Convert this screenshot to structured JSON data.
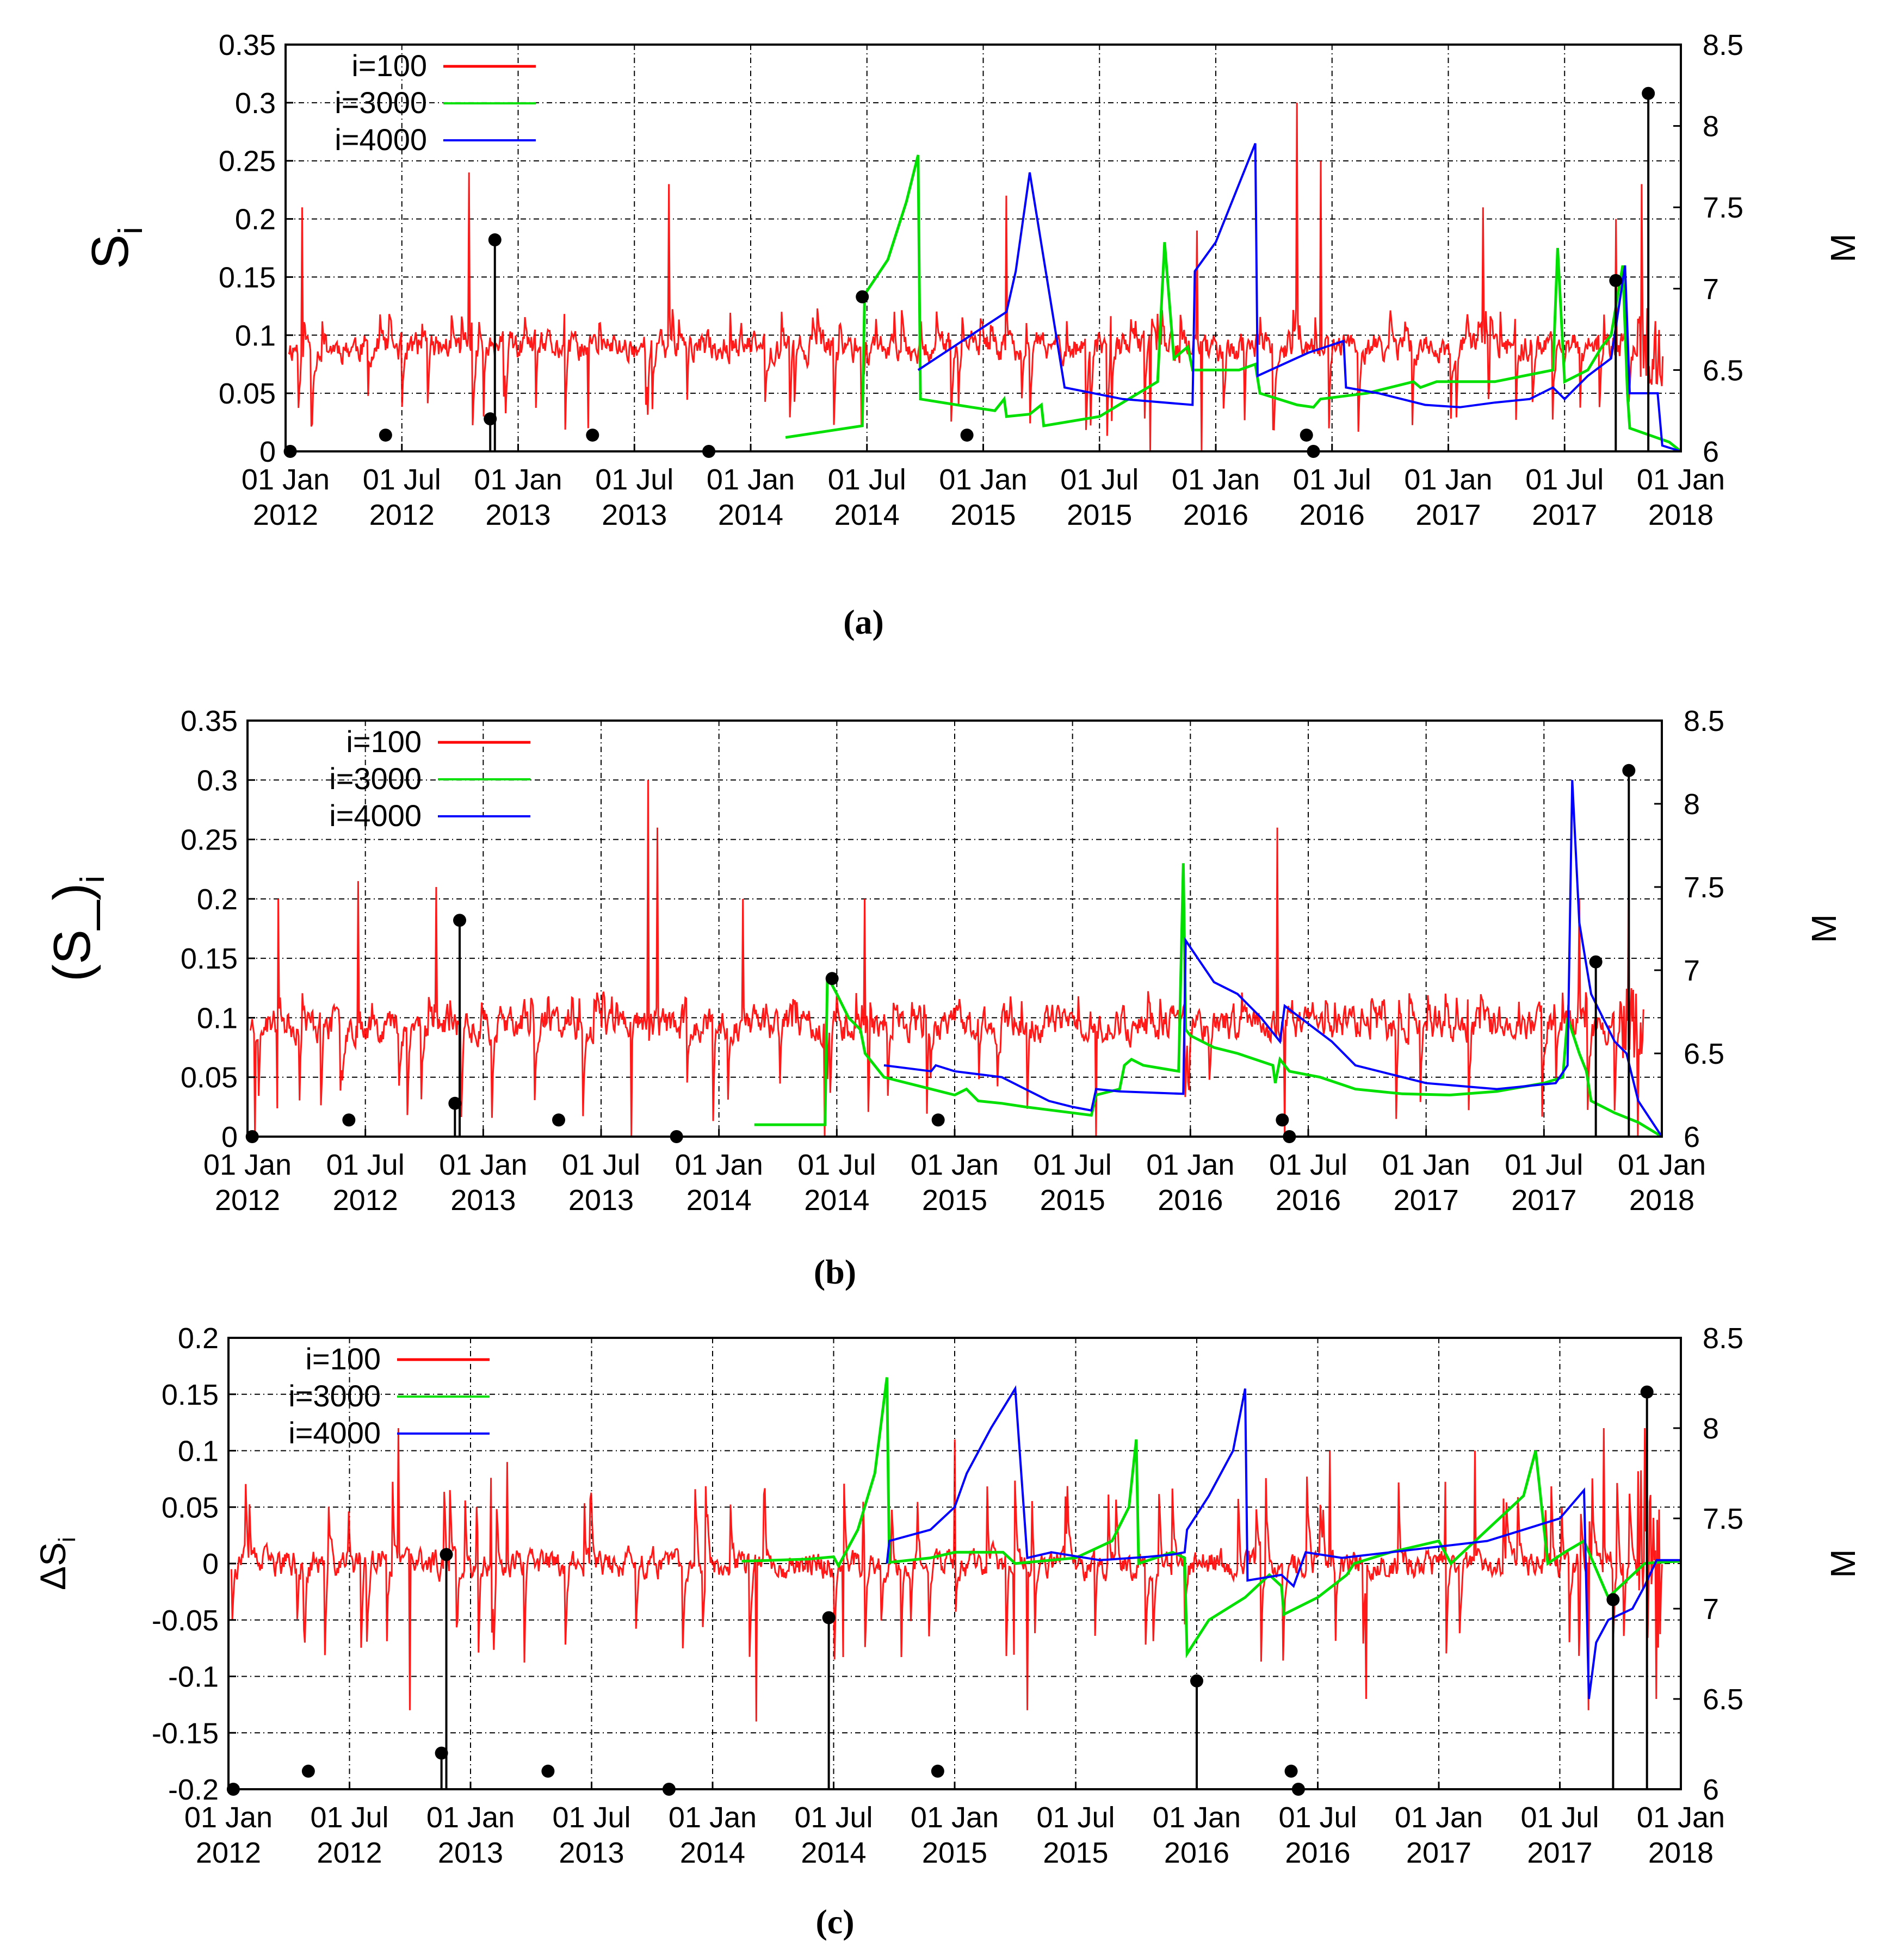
{
  "figure": {
    "x_ticks": [
      {
        "line1": "01 Jan",
        "line2": "2012",
        "t": 0
      },
      {
        "line1": "01 Jul",
        "line2": "2012",
        "t": 0.5
      },
      {
        "line1": "01 Jan",
        "line2": "2013",
        "t": 1
      },
      {
        "line1": "01 Jul",
        "line2": "2013",
        "t": 1.5
      },
      {
        "line1": "01 Jan",
        "line2": "2014",
        "t": 2
      },
      {
        "line1": "01 Jul",
        "line2": "2014",
        "t": 2.5
      },
      {
        "line1": "01 Jan",
        "line2": "2015",
        "t": 3
      },
      {
        "line1": "01 Jul",
        "line2": "2015",
        "t": 3.5
      },
      {
        "line1": "01 Jan",
        "line2": "2016",
        "t": 4
      },
      {
        "line1": "01 Jul",
        "line2": "2016",
        "t": 4.5
      },
      {
        "line1": "01 Jan",
        "line2": "2017",
        "t": 5
      },
      {
        "line1": "01 Jul",
        "line2": "2017",
        "t": 5.5
      },
      {
        "line1": "01 Jan",
        "line2": "2018",
        "t": 6
      }
    ],
    "legend": [
      {
        "label": "i=100",
        "color": "#ff0000"
      },
      {
        "label": "i=3000",
        "color": "#00e000"
      },
      {
        "label": "i=4000",
        "color": "#0000ff"
      }
    ],
    "colors": {
      "red": "#ff0000",
      "green": "#00e000",
      "blue": "#0000ff",
      "events": "#000000",
      "grid": "#000000"
    }
  },
  "chart_data": [
    {
      "type": "line",
      "caption": "(a)",
      "ylabel": "S",
      "ylabel_sub": "i",
      "y2label": "M",
      "ylim": [
        0,
        0.35
      ],
      "y_ticks": [
        "0",
        "0.05",
        "0.1",
        "0.15",
        "0.2",
        "0.25",
        "0.3",
        "0.35"
      ],
      "y2lim": [
        6,
        8.5
      ],
      "y2_ticks": [
        "6",
        "6.5",
        "7",
        "7.5",
        "8",
        "8.5"
      ],
      "xlim_years": [
        0,
        6
      ],
      "noise": {
        "base": 0.09,
        "amp": 0.022,
        "spike_hi": 0.12,
        "spike_lo": 0.02,
        "min": 0,
        "max": 0.35,
        "seed": 11
      },
      "spikes": [
        [
          0.07,
          0.21
        ],
        [
          0.79,
          0.24
        ],
        [
          1.65,
          0.23
        ],
        [
          3.1,
          0.22
        ],
        [
          3.92,
          0.19
        ],
        [
          4.35,
          0.3
        ],
        [
          4.45,
          0.25
        ],
        [
          5.15,
          0.21
        ],
        [
          5.72,
          0.2
        ],
        [
          5.83,
          0.23
        ],
        [
          0.85,
          0.03
        ],
        [
          1.3,
          0.02
        ],
        [
          3.72,
          0.0
        ],
        [
          3.94,
          0.0
        ]
      ],
      "series": [
        {
          "name": "i=3000",
          "color": "#00e000",
          "x": [
            2.15,
            2.48,
            2.49,
            2.59,
            2.67,
            2.72,
            2.73,
            2.95,
            3.05,
            3.09,
            3.1,
            3.2,
            3.25,
            3.26,
            3.5,
            3.75,
            3.78,
            3.82,
            3.88,
            3.9,
            4.1,
            4.17,
            4.19,
            4.35,
            4.42,
            4.45,
            4.65,
            4.85,
            4.88,
            4.95,
            5.2,
            5.45,
            5.47,
            5.5,
            5.6,
            5.66,
            5.7,
            5.75,
            5.77,
            5.78,
            5.85,
            5.95,
            6.0
          ],
          "values": [
            0.012,
            0.022,
            0.135,
            0.165,
            0.215,
            0.255,
            0.045,
            0.038,
            0.035,
            0.045,
            0.03,
            0.032,
            0.04,
            0.022,
            0.03,
            0.06,
            0.18,
            0.08,
            0.09,
            0.07,
            0.07,
            0.075,
            0.05,
            0.04,
            0.038,
            0.045,
            0.05,
            0.06,
            0.055,
            0.06,
            0.06,
            0.07,
            0.175,
            0.06,
            0.07,
            0.09,
            0.1,
            0.16,
            0.05,
            0.02,
            0.015,
            0.008,
            0.0
          ]
        },
        {
          "name": "i=4000",
          "color": "#0000ff",
          "x": [
            2.72,
            3.1,
            3.14,
            3.2,
            3.35,
            3.6,
            3.9,
            3.91,
            4.0,
            4.17,
            4.18,
            4.4,
            4.55,
            4.56,
            4.7,
            4.9,
            5.05,
            5.2,
            5.35,
            5.45,
            5.5,
            5.6,
            5.7,
            5.76,
            5.78,
            5.9,
            5.92,
            6.0
          ],
          "values": [
            0.07,
            0.12,
            0.155,
            0.24,
            0.055,
            0.045,
            0.04,
            0.155,
            0.18,
            0.265,
            0.065,
            0.085,
            0.095,
            0.055,
            0.05,
            0.04,
            0.038,
            0.042,
            0.045,
            0.055,
            0.045,
            0.065,
            0.08,
            0.16,
            0.05,
            0.05,
            0.005,
            0.0
          ]
        }
      ],
      "events": [
        {
          "x": 0.02,
          "m": 6.0
        },
        {
          "x": 0.43,
          "m": 6.1
        },
        {
          "x": 0.88,
          "m": 6.2
        },
        {
          "x": 0.9,
          "m": 7.3
        },
        {
          "x": 1.32,
          "m": 6.1
        },
        {
          "x": 1.82,
          "m": 6.0
        },
        {
          "x": 2.48,
          "m": 6.95
        },
        {
          "x": 2.93,
          "m": 6.1
        },
        {
          "x": 4.39,
          "m": 6.1
        },
        {
          "x": 4.42,
          "m": 6.0
        },
        {
          "x": 5.72,
          "m": 7.05
        },
        {
          "x": 5.86,
          "m": 8.2
        }
      ],
      "stems": [
        {
          "x": 0.88,
          "m": 6.2
        },
        {
          "x": 0.9,
          "m": 7.3
        },
        {
          "x": 5.72,
          "m": 7.05
        },
        {
          "x": 5.86,
          "m": 8.2
        }
      ]
    },
    {
      "type": "line",
      "caption": "(b)",
      "ylabel": "(S_)",
      "ylabel_sub": "i",
      "y2label": "M",
      "ylim": [
        0,
        0.35
      ],
      "y_ticks": [
        "0",
        "0.05",
        "0.1",
        "0.15",
        "0.2",
        "0.25",
        "0.3",
        "0.35"
      ],
      "y2lim": [
        6,
        8.5
      ],
      "y2_ticks": [
        "6",
        "6.5",
        "7",
        "7.5",
        "8",
        "8.5"
      ],
      "xlim_years": [
        0,
        6
      ],
      "noise": {
        "base": 0.095,
        "amp": 0.025,
        "spike_hi": 0.12,
        "spike_lo": 0.02,
        "min": 0,
        "max": 0.35,
        "seed": 23
      },
      "spikes": [
        [
          0.13,
          0.2
        ],
        [
          0.47,
          0.215
        ],
        [
          0.8,
          0.21
        ],
        [
          1.7,
          0.3
        ],
        [
          1.74,
          0.26
        ],
        [
          2.1,
          0.2
        ],
        [
          2.62,
          0.2
        ],
        [
          4.37,
          0.26
        ],
        [
          5.65,
          0.2
        ],
        [
          5.86,
          0.2
        ],
        [
          0.03,
          0.0
        ],
        [
          1.63,
          0.0
        ],
        [
          2.45,
          0.0
        ],
        [
          3.6,
          0.0
        ],
        [
          4.4,
          0.0
        ],
        [
          5.9,
          0.0
        ]
      ],
      "series": [
        {
          "name": "i=3000",
          "color": "#00e000",
          "x": [
            2.15,
            2.45,
            2.46,
            2.5,
            2.55,
            2.6,
            2.62,
            2.7,
            2.9,
            3.0,
            3.05,
            3.1,
            3.2,
            3.3,
            3.5,
            3.58,
            3.6,
            3.7,
            3.72,
            3.75,
            3.8,
            3.95,
            3.97,
            3.98,
            4.0,
            4.1,
            4.2,
            4.35,
            4.36,
            4.38,
            4.42,
            4.55,
            4.7,
            4.9,
            5.1,
            5.3,
            5.5,
            5.58,
            5.6,
            5.65,
            5.68,
            5.7,
            5.8,
            5.9,
            6.0
          ],
          "values": [
            0.01,
            0.01,
            0.135,
            0.12,
            0.1,
            0.09,
            0.07,
            0.05,
            0.04,
            0.035,
            0.04,
            0.03,
            0.028,
            0.025,
            0.02,
            0.018,
            0.035,
            0.04,
            0.06,
            0.065,
            0.06,
            0.055,
            0.23,
            0.09,
            0.085,
            0.075,
            0.07,
            0.06,
            0.045,
            0.065,
            0.055,
            0.05,
            0.04,
            0.036,
            0.035,
            0.038,
            0.045,
            0.05,
            0.1,
            0.07,
            0.055,
            0.03,
            0.02,
            0.012,
            0.0
          ]
        },
        {
          "name": "i=4000",
          "color": "#0000ff",
          "x": [
            2.7,
            2.9,
            2.92,
            3.0,
            3.2,
            3.3,
            3.4,
            3.5,
            3.58,
            3.6,
            3.7,
            3.97,
            3.98,
            4.1,
            4.2,
            4.3,
            4.38,
            4.4,
            4.5,
            4.6,
            4.7,
            5.0,
            5.3,
            5.55,
            5.6,
            5.62,
            5.65,
            5.7,
            5.8,
            5.85,
            5.9,
            6.0
          ],
          "values": [
            0.06,
            0.055,
            0.06,
            0.055,
            0.05,
            0.04,
            0.03,
            0.025,
            0.022,
            0.04,
            0.038,
            0.036,
            0.165,
            0.13,
            0.12,
            0.1,
            0.08,
            0.11,
            0.095,
            0.08,
            0.06,
            0.045,
            0.04,
            0.045,
            0.06,
            0.3,
            0.18,
            0.12,
            0.08,
            0.07,
            0.03,
            0.0
          ]
        }
      ],
      "events": [
        {
          "x": 0.02,
          "m": 6.0
        },
        {
          "x": 0.43,
          "m": 6.1
        },
        {
          "x": 0.88,
          "m": 6.2
        },
        {
          "x": 0.9,
          "m": 7.3
        },
        {
          "x": 1.32,
          "m": 6.1
        },
        {
          "x": 1.82,
          "m": 6.0
        },
        {
          "x": 2.48,
          "m": 6.95
        },
        {
          "x": 2.93,
          "m": 6.1
        },
        {
          "x": 4.39,
          "m": 6.1
        },
        {
          "x": 4.42,
          "m": 6.0
        },
        {
          "x": 5.72,
          "m": 7.05
        },
        {
          "x": 5.86,
          "m": 8.2
        }
      ],
      "stems": [
        {
          "x": 0.88,
          "m": 6.2
        },
        {
          "x": 0.9,
          "m": 7.3
        },
        {
          "x": 5.72,
          "m": 7.05
        },
        {
          "x": 5.86,
          "m": 8.2
        }
      ]
    },
    {
      "type": "line",
      "caption": "(c)",
      "ylabel": "ΔS",
      "ylabel_sub": "i",
      "y2label": "M",
      "ylim": [
        -0.2,
        0.2
      ],
      "y_ticks": [
        "-0.2",
        "-0.15",
        "-0.1",
        "-0.05",
        "0",
        "0.05",
        "0.1",
        "0.15",
        "0.2"
      ],
      "y2lim": [
        6,
        8.5
      ],
      "y2_ticks": [
        "6",
        "6.5",
        "7",
        "7.5",
        "8",
        "8.5"
      ],
      "xlim_years": [
        0,
        6
      ],
      "noise": {
        "base": 0.0,
        "amp": 0.022,
        "spike_hi": 0.07,
        "spike_lo": -0.08,
        "min": -0.2,
        "max": 0.2,
        "seed": 37
      },
      "spikes": [
        [
          0.7,
          0.12
        ],
        [
          1.15,
          0.09
        ],
        [
          3.0,
          0.11
        ],
        [
          4.55,
          0.1
        ],
        [
          5.15,
          0.1
        ],
        [
          5.68,
          0.12
        ],
        [
          5.85,
          0.12
        ],
        [
          0.75,
          -0.13
        ],
        [
          2.18,
          -0.14
        ],
        [
          3.3,
          -0.13
        ],
        [
          4.7,
          -0.12
        ],
        [
          5.62,
          -0.13
        ],
        [
          5.9,
          -0.12
        ]
      ],
      "series": [
        {
          "name": "i=3000",
          "color": "#00e000",
          "x": [
            2.12,
            2.4,
            2.5,
            2.52,
            2.6,
            2.67,
            2.72,
            2.73,
            2.9,
            3.0,
            3.1,
            3.2,
            3.25,
            3.5,
            3.65,
            3.72,
            3.75,
            3.76,
            3.9,
            3.95,
            3.96,
            4.05,
            4.2,
            4.3,
            4.35,
            4.36,
            4.5,
            4.62,
            4.65,
            4.8,
            5.0,
            5.05,
            5.1,
            5.2,
            5.35,
            5.4,
            5.45,
            5.52,
            5.6,
            5.62,
            5.7,
            5.8,
            5.85,
            5.9,
            6.0
          ],
          "values": [
            0.002,
            0.004,
            0.006,
            -0.002,
            0.03,
            0.08,
            0.165,
            0.001,
            0.005,
            0.01,
            0.01,
            0.01,
            0.0,
            0.005,
            0.02,
            0.05,
            0.11,
            0.0,
            0.01,
            0.005,
            -0.08,
            -0.05,
            -0.03,
            -0.01,
            -0.02,
            -0.045,
            -0.03,
            -0.01,
            0.0,
            0.01,
            0.02,
            0.0,
            0.01,
            0.03,
            0.06,
            0.1,
            0.0,
            0.01,
            0.02,
            0.01,
            -0.03,
            -0.01,
            0.0,
            0.001,
            0.002
          ]
        },
        {
          "name": "i=4000",
          "color": "#0000ff",
          "x": [
            2.72,
            2.73,
            2.9,
            3.0,
            3.05,
            3.15,
            3.25,
            3.3,
            3.4,
            3.6,
            3.8,
            3.9,
            3.95,
            3.96,
            4.05,
            4.15,
            4.2,
            4.21,
            4.35,
            4.4,
            4.45,
            4.6,
            4.8,
            5.0,
            5.2,
            5.35,
            5.5,
            5.6,
            5.62,
            5.65,
            5.7,
            5.8,
            5.85,
            5.9,
            6.0
          ],
          "values": [
            0.0,
            0.02,
            0.03,
            0.05,
            0.08,
            0.12,
            0.155,
            0.005,
            0.01,
            0.003,
            0.006,
            0.008,
            0.01,
            0.03,
            0.06,
            0.1,
            0.155,
            -0.015,
            -0.01,
            -0.02,
            0.01,
            0.005,
            0.01,
            0.015,
            0.02,
            0.03,
            0.04,
            0.065,
            -0.12,
            -0.07,
            -0.05,
            -0.04,
            -0.02,
            0.003,
            0.003
          ]
        }
      ],
      "events": [
        {
          "x": 0.02,
          "m": 6.0
        },
        {
          "x": 0.33,
          "m": 6.1
        },
        {
          "x": 0.88,
          "m": 6.2
        },
        {
          "x": 0.9,
          "m": 7.3
        },
        {
          "x": 1.32,
          "m": 6.1
        },
        {
          "x": 1.82,
          "m": 6.0
        },
        {
          "x": 2.48,
          "m": 6.95
        },
        {
          "x": 2.93,
          "m": 6.1
        },
        {
          "x": 4.0,
          "m": 6.6
        },
        {
          "x": 4.39,
          "m": 6.1
        },
        {
          "x": 4.42,
          "m": 6.0
        },
        {
          "x": 5.72,
          "m": 7.05
        },
        {
          "x": 5.86,
          "m": 8.2
        }
      ],
      "stems": [
        {
          "x": 0.88,
          "m": 6.2
        },
        {
          "x": 0.9,
          "m": 7.3
        },
        {
          "x": 2.48,
          "m": 6.95
        },
        {
          "x": 4.0,
          "m": 6.6
        },
        {
          "x": 5.72,
          "m": 7.05
        },
        {
          "x": 5.86,
          "m": 8.2
        }
      ]
    }
  ]
}
